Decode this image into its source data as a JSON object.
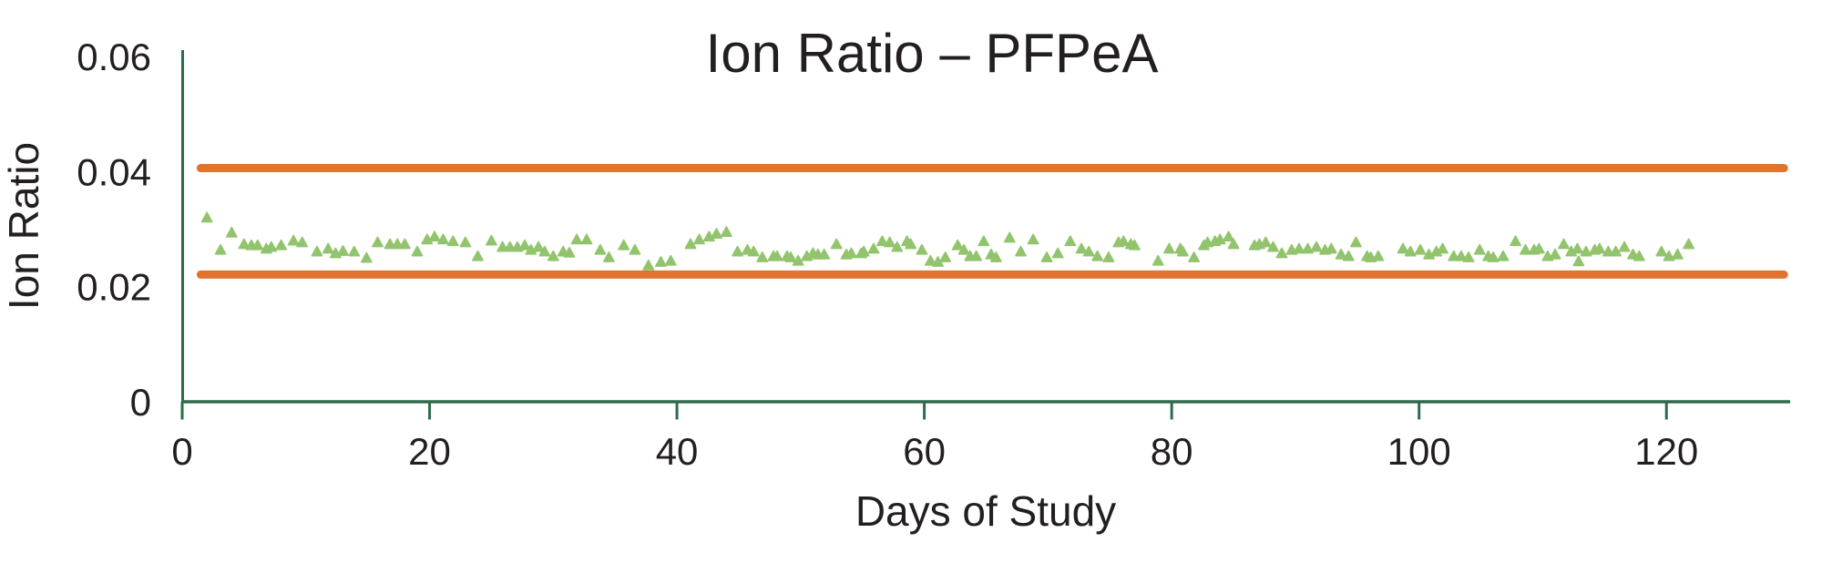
{
  "page": {
    "background": "#ffffff"
  },
  "chart": {
    "title": "Ion Ratio – PFPeA",
    "x_axis_title": "Days of Study",
    "y_axis_title": "Ion Ratio"
  },
  "chart_data": {
    "type": "scatter",
    "title": "Ion Ratio – PFPeA",
    "xlabel": "Days of Study",
    "ylabel": "Ion Ratio",
    "xlim": [
      0,
      130
    ],
    "ylim": [
      0,
      0.06
    ],
    "x_ticks": [
      0,
      20,
      40,
      60,
      80,
      100,
      120
    ],
    "y_ticks": [
      0,
      0.02,
      0.04,
      0.06
    ],
    "y_tick_labels": [
      "0",
      "0.02",
      "0.04",
      "0.06"
    ],
    "grid": false,
    "legend_position": "none",
    "marker": "triangle-up",
    "marker_color": "#92C46D",
    "axis_color": "#2E6B4D",
    "text_color": "#231F20",
    "control_limits": {
      "upper": 0.0406,
      "lower": 0.0221,
      "color": "#E2722E",
      "x_start": 1.5,
      "x_end": 129.5
    },
    "series": [
      {
        "name": "PFPeA ion ratio",
        "points": [
          [
            2.0,
            0.032
          ],
          [
            3.1,
            0.0264
          ],
          [
            4.0,
            0.0294
          ],
          [
            5.0,
            0.0274
          ],
          [
            5.6,
            0.0272
          ],
          [
            6.1,
            0.0272
          ],
          [
            6.8,
            0.0266
          ],
          [
            7.2,
            0.0269
          ],
          [
            8.0,
            0.0272
          ],
          [
            9.0,
            0.028
          ],
          [
            9.7,
            0.0277
          ],
          [
            10.9,
            0.0261
          ],
          [
            11.8,
            0.0266
          ],
          [
            12.4,
            0.0258
          ],
          [
            13.0,
            0.0262
          ],
          [
            13.9,
            0.0261
          ],
          [
            14.9,
            0.025
          ],
          [
            15.8,
            0.0277
          ],
          [
            16.8,
            0.0274
          ],
          [
            17.4,
            0.0274
          ],
          [
            18.0,
            0.0274
          ],
          [
            19.0,
            0.0261
          ],
          [
            19.8,
            0.0282
          ],
          [
            20.4,
            0.0287
          ],
          [
            21.1,
            0.0282
          ],
          [
            21.9,
            0.0279
          ],
          [
            22.9,
            0.0277
          ],
          [
            23.9,
            0.0253
          ],
          [
            25.0,
            0.028
          ],
          [
            25.9,
            0.0269
          ],
          [
            26.5,
            0.0269
          ],
          [
            27.1,
            0.0269
          ],
          [
            27.7,
            0.0272
          ],
          [
            28.2,
            0.0264
          ],
          [
            28.8,
            0.0269
          ],
          [
            29.3,
            0.0261
          ],
          [
            30.0,
            0.0253
          ],
          [
            30.8,
            0.0261
          ],
          [
            31.3,
            0.0259
          ],
          [
            31.9,
            0.0282
          ],
          [
            32.7,
            0.0282
          ],
          [
            33.8,
            0.0264
          ],
          [
            34.5,
            0.0251
          ],
          [
            35.7,
            0.0272
          ],
          [
            36.6,
            0.0264
          ],
          [
            37.7,
            0.0237
          ],
          [
            38.7,
            0.0243
          ],
          [
            39.5,
            0.0245
          ],
          [
            41.1,
            0.0274
          ],
          [
            41.8,
            0.0282
          ],
          [
            42.6,
            0.0287
          ],
          [
            43.2,
            0.0292
          ],
          [
            44.0,
            0.0295
          ],
          [
            44.9,
            0.0261
          ],
          [
            45.7,
            0.0264
          ],
          [
            46.2,
            0.0261
          ],
          [
            46.9,
            0.0251
          ],
          [
            47.8,
            0.0253
          ],
          [
            48.1,
            0.0253
          ],
          [
            48.9,
            0.0253
          ],
          [
            49.2,
            0.0251
          ],
          [
            49.8,
            0.0245
          ],
          [
            50.5,
            0.0253
          ],
          [
            51.0,
            0.0258
          ],
          [
            51.4,
            0.0256
          ],
          [
            51.9,
            0.0256
          ],
          [
            52.9,
            0.0274
          ],
          [
            53.7,
            0.0256
          ],
          [
            54.1,
            0.0258
          ],
          [
            54.9,
            0.0258
          ],
          [
            55.1,
            0.0261
          ],
          [
            55.9,
            0.0266
          ],
          [
            56.6,
            0.0279
          ],
          [
            57.2,
            0.0277
          ],
          [
            57.8,
            0.0269
          ],
          [
            58.6,
            0.0279
          ],
          [
            58.9,
            0.0274
          ],
          [
            59.8,
            0.0264
          ],
          [
            60.5,
            0.0245
          ],
          [
            61.1,
            0.0243
          ],
          [
            61.7,
            0.0251
          ],
          [
            62.7,
            0.0272
          ],
          [
            63.2,
            0.0264
          ],
          [
            63.7,
            0.0253
          ],
          [
            64.2,
            0.0253
          ],
          [
            64.8,
            0.0279
          ],
          [
            65.4,
            0.0256
          ],
          [
            65.8,
            0.0251
          ],
          [
            66.9,
            0.0285
          ],
          [
            67.8,
            0.0261
          ],
          [
            68.8,
            0.0282
          ],
          [
            69.9,
            0.0251
          ],
          [
            70.8,
            0.0258
          ],
          [
            71.8,
            0.0279
          ],
          [
            72.7,
            0.0266
          ],
          [
            73.3,
            0.0261
          ],
          [
            74.0,
            0.0253
          ],
          [
            74.9,
            0.0251
          ],
          [
            75.7,
            0.0277
          ],
          [
            76.1,
            0.0279
          ],
          [
            76.7,
            0.0274
          ],
          [
            77.0,
            0.0272
          ],
          [
            78.9,
            0.0245
          ],
          [
            79.8,
            0.0266
          ],
          [
            80.7,
            0.0266
          ],
          [
            80.9,
            0.0261
          ],
          [
            81.8,
            0.0251
          ],
          [
            82.6,
            0.0272
          ],
          [
            82.9,
            0.0277
          ],
          [
            83.5,
            0.0279
          ],
          [
            83.9,
            0.0282
          ],
          [
            84.6,
            0.0287
          ],
          [
            85.0,
            0.0274
          ],
          [
            86.7,
            0.0272
          ],
          [
            87.1,
            0.0274
          ],
          [
            87.6,
            0.0277
          ],
          [
            88.2,
            0.0269
          ],
          [
            88.9,
            0.0258
          ],
          [
            89.7,
            0.0264
          ],
          [
            90.3,
            0.0266
          ],
          [
            91.0,
            0.0266
          ],
          [
            91.7,
            0.0269
          ],
          [
            92.4,
            0.0264
          ],
          [
            92.9,
            0.0266
          ],
          [
            93.7,
            0.0256
          ],
          [
            94.3,
            0.0253
          ],
          [
            94.9,
            0.0277
          ],
          [
            95.8,
            0.0253
          ],
          [
            96.1,
            0.0251
          ],
          [
            96.7,
            0.0253
          ],
          [
            98.7,
            0.0266
          ],
          [
            99.3,
            0.0261
          ],
          [
            100.1,
            0.0264
          ],
          [
            100.8,
            0.0256
          ],
          [
            101.4,
            0.0261
          ],
          [
            101.9,
            0.0266
          ],
          [
            102.8,
            0.0253
          ],
          [
            103.4,
            0.0253
          ],
          [
            104.0,
            0.0251
          ],
          [
            104.9,
            0.0264
          ],
          [
            105.6,
            0.0253
          ],
          [
            106.0,
            0.0251
          ],
          [
            106.8,
            0.0253
          ],
          [
            107.8,
            0.0279
          ],
          [
            108.6,
            0.0264
          ],
          [
            109.3,
            0.0264
          ],
          [
            109.7,
            0.0266
          ],
          [
            110.4,
            0.0253
          ],
          [
            111.0,
            0.0256
          ],
          [
            111.7,
            0.0274
          ],
          [
            112.3,
            0.0261
          ],
          [
            112.8,
            0.0266
          ],
          [
            112.9,
            0.0244
          ],
          [
            113.5,
            0.0261
          ],
          [
            114.2,
            0.0264
          ],
          [
            114.6,
            0.0266
          ],
          [
            115.3,
            0.0261
          ],
          [
            115.9,
            0.0261
          ],
          [
            116.6,
            0.0269
          ],
          [
            117.3,
            0.0256
          ],
          [
            117.8,
            0.0253
          ],
          [
            119.6,
            0.0261
          ],
          [
            120.2,
            0.0253
          ],
          [
            120.9,
            0.0256
          ],
          [
            121.8,
            0.0274
          ]
        ]
      }
    ]
  }
}
